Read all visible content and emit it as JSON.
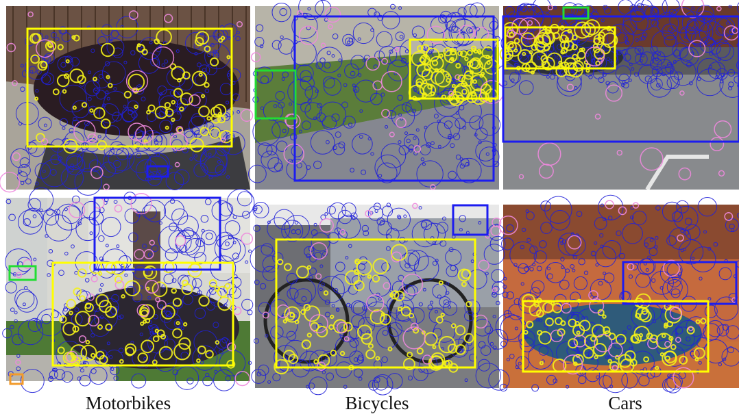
{
  "captions": [
    "Motorbikes",
    "Bicycles",
    "Cars"
  ],
  "colors": {
    "detection": "#2020d8",
    "positive": "#f4f21a",
    "attended": "#ee88dd",
    "box_blue": "#1c1cf0",
    "box_yellow": "#ffff00",
    "box_green": "#22dd33",
    "box_orange": "#f29a2a"
  },
  "panels": [
    {
      "id": "motorbike-top",
      "scene": "motorbike on pavement before wooden fence"
    },
    {
      "id": "bicycle-top",
      "scene": "bicycle near garden and paved sidewalk"
    },
    {
      "id": "car-top",
      "scene": "car parked in street before building"
    },
    {
      "id": "motorbike-bottom",
      "scene": "rider on motorbike beside house"
    },
    {
      "id": "bicycle-bottom",
      "scene": "bicycle in front of parked cars"
    },
    {
      "id": "car-bottom",
      "scene": "car in red desert landscape"
    }
  ]
}
